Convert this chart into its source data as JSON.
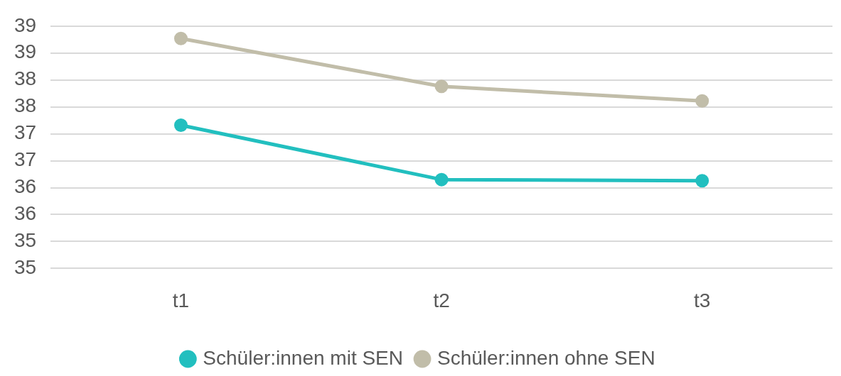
{
  "chart_data": {
    "type": "line",
    "categories": [
      "t1",
      "t2",
      "t3"
    ],
    "series": [
      {
        "name": "Schüler:innen mit SEN",
        "color": "#22bfbf",
        "values": [
          37.16,
          36.15,
          36.13
        ]
      },
      {
        "name": "Schüler:innen ohne SEN",
        "color": "#c1bda9",
        "values": [
          38.77,
          37.88,
          37.61
        ]
      }
    ],
    "ylim": [
      34.5,
      39
    ],
    "yticks": [
      {
        "value": 34.5,
        "label": "35"
      },
      {
        "value": 35,
        "label": "35"
      },
      {
        "value": 35.5,
        "label": "36"
      },
      {
        "value": 36,
        "label": "36"
      },
      {
        "value": 36.5,
        "label": "37"
      },
      {
        "value": 37,
        "label": "37"
      },
      {
        "value": 37.5,
        "label": "38"
      },
      {
        "value": 38,
        "label": "38"
      },
      {
        "value": 38.5,
        "label": "39"
      },
      {
        "value": 39,
        "label": "39"
      }
    ],
    "grid": "y",
    "legend": "bottom",
    "marker": "circle",
    "line_style": "solid"
  }
}
